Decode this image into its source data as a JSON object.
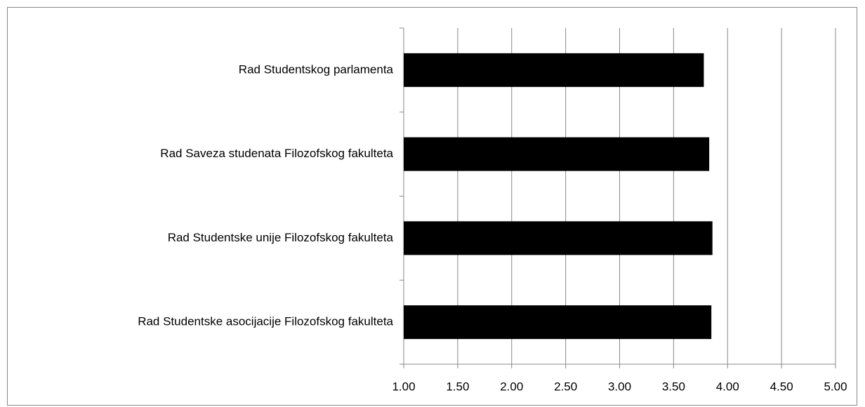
{
  "chart_data": {
    "type": "barh",
    "categories": [
      "Rad Studentskog parlamenta",
      "Rad Saveza studenata Filozofskog fakulteta",
      "Rad Studentske unije Filozofskog fakulteta",
      "Rad Studentske asocijacije Filozofskog fakulteta"
    ],
    "values": [
      3.78,
      3.83,
      3.86,
      3.85
    ],
    "color": "#000000",
    "xlim": [
      1,
      5
    ],
    "xticks": [
      {
        "value": 1,
        "label": "1.00"
      },
      {
        "value": 1.5,
        "label": "1.50"
      },
      {
        "value": 2,
        "label": "2.00"
      },
      {
        "value": 2.5,
        "label": "2.50"
      },
      {
        "value": 3,
        "label": "3.00"
      },
      {
        "value": 3.5,
        "label": "3.50"
      },
      {
        "value": 4,
        "label": "4.00"
      },
      {
        "value": 4.5,
        "label": "4.50"
      },
      {
        "value": 5,
        "label": "5.00"
      }
    ],
    "grid": true
  }
}
